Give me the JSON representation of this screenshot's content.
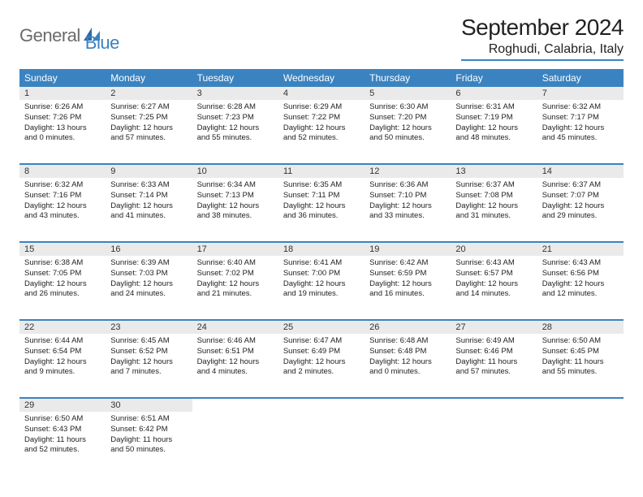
{
  "logo": {
    "general": "General",
    "blue": "Blue"
  },
  "title": "September 2024",
  "location": "Roghudi, Calabria, Italy",
  "colors": {
    "accent": "#3b83c0",
    "header_bg": "#3b83c0",
    "header_text": "#ffffff",
    "daynum_bg": "#eaeaea",
    "border": "#3b83c0",
    "text": "#222222",
    "logo_gray": "#6b6b6b"
  },
  "day_names": [
    "Sunday",
    "Monday",
    "Tuesday",
    "Wednesday",
    "Thursday",
    "Friday",
    "Saturday"
  ],
  "weeks": [
    [
      {
        "n": "1",
        "sr": "Sunrise: 6:26 AM",
        "ss": "Sunset: 7:26 PM",
        "d1": "Daylight: 13 hours",
        "d2": "and 0 minutes."
      },
      {
        "n": "2",
        "sr": "Sunrise: 6:27 AM",
        "ss": "Sunset: 7:25 PM",
        "d1": "Daylight: 12 hours",
        "d2": "and 57 minutes."
      },
      {
        "n": "3",
        "sr": "Sunrise: 6:28 AM",
        "ss": "Sunset: 7:23 PM",
        "d1": "Daylight: 12 hours",
        "d2": "and 55 minutes."
      },
      {
        "n": "4",
        "sr": "Sunrise: 6:29 AM",
        "ss": "Sunset: 7:22 PM",
        "d1": "Daylight: 12 hours",
        "d2": "and 52 minutes."
      },
      {
        "n": "5",
        "sr": "Sunrise: 6:30 AM",
        "ss": "Sunset: 7:20 PM",
        "d1": "Daylight: 12 hours",
        "d2": "and 50 minutes."
      },
      {
        "n": "6",
        "sr": "Sunrise: 6:31 AM",
        "ss": "Sunset: 7:19 PM",
        "d1": "Daylight: 12 hours",
        "d2": "and 48 minutes."
      },
      {
        "n": "7",
        "sr": "Sunrise: 6:32 AM",
        "ss": "Sunset: 7:17 PM",
        "d1": "Daylight: 12 hours",
        "d2": "and 45 minutes."
      }
    ],
    [
      {
        "n": "8",
        "sr": "Sunrise: 6:32 AM",
        "ss": "Sunset: 7:16 PM",
        "d1": "Daylight: 12 hours",
        "d2": "and 43 minutes."
      },
      {
        "n": "9",
        "sr": "Sunrise: 6:33 AM",
        "ss": "Sunset: 7:14 PM",
        "d1": "Daylight: 12 hours",
        "d2": "and 41 minutes."
      },
      {
        "n": "10",
        "sr": "Sunrise: 6:34 AM",
        "ss": "Sunset: 7:13 PM",
        "d1": "Daylight: 12 hours",
        "d2": "and 38 minutes."
      },
      {
        "n": "11",
        "sr": "Sunrise: 6:35 AM",
        "ss": "Sunset: 7:11 PM",
        "d1": "Daylight: 12 hours",
        "d2": "and 36 minutes."
      },
      {
        "n": "12",
        "sr": "Sunrise: 6:36 AM",
        "ss": "Sunset: 7:10 PM",
        "d1": "Daylight: 12 hours",
        "d2": "and 33 minutes."
      },
      {
        "n": "13",
        "sr": "Sunrise: 6:37 AM",
        "ss": "Sunset: 7:08 PM",
        "d1": "Daylight: 12 hours",
        "d2": "and 31 minutes."
      },
      {
        "n": "14",
        "sr": "Sunrise: 6:37 AM",
        "ss": "Sunset: 7:07 PM",
        "d1": "Daylight: 12 hours",
        "d2": "and 29 minutes."
      }
    ],
    [
      {
        "n": "15",
        "sr": "Sunrise: 6:38 AM",
        "ss": "Sunset: 7:05 PM",
        "d1": "Daylight: 12 hours",
        "d2": "and 26 minutes."
      },
      {
        "n": "16",
        "sr": "Sunrise: 6:39 AM",
        "ss": "Sunset: 7:03 PM",
        "d1": "Daylight: 12 hours",
        "d2": "and 24 minutes."
      },
      {
        "n": "17",
        "sr": "Sunrise: 6:40 AM",
        "ss": "Sunset: 7:02 PM",
        "d1": "Daylight: 12 hours",
        "d2": "and 21 minutes."
      },
      {
        "n": "18",
        "sr": "Sunrise: 6:41 AM",
        "ss": "Sunset: 7:00 PM",
        "d1": "Daylight: 12 hours",
        "d2": "and 19 minutes."
      },
      {
        "n": "19",
        "sr": "Sunrise: 6:42 AM",
        "ss": "Sunset: 6:59 PM",
        "d1": "Daylight: 12 hours",
        "d2": "and 16 minutes."
      },
      {
        "n": "20",
        "sr": "Sunrise: 6:43 AM",
        "ss": "Sunset: 6:57 PM",
        "d1": "Daylight: 12 hours",
        "d2": "and 14 minutes."
      },
      {
        "n": "21",
        "sr": "Sunrise: 6:43 AM",
        "ss": "Sunset: 6:56 PM",
        "d1": "Daylight: 12 hours",
        "d2": "and 12 minutes."
      }
    ],
    [
      {
        "n": "22",
        "sr": "Sunrise: 6:44 AM",
        "ss": "Sunset: 6:54 PM",
        "d1": "Daylight: 12 hours",
        "d2": "and 9 minutes."
      },
      {
        "n": "23",
        "sr": "Sunrise: 6:45 AM",
        "ss": "Sunset: 6:52 PM",
        "d1": "Daylight: 12 hours",
        "d2": "and 7 minutes."
      },
      {
        "n": "24",
        "sr": "Sunrise: 6:46 AM",
        "ss": "Sunset: 6:51 PM",
        "d1": "Daylight: 12 hours",
        "d2": "and 4 minutes."
      },
      {
        "n": "25",
        "sr": "Sunrise: 6:47 AM",
        "ss": "Sunset: 6:49 PM",
        "d1": "Daylight: 12 hours",
        "d2": "and 2 minutes."
      },
      {
        "n": "26",
        "sr": "Sunrise: 6:48 AM",
        "ss": "Sunset: 6:48 PM",
        "d1": "Daylight: 12 hours",
        "d2": "and 0 minutes."
      },
      {
        "n": "27",
        "sr": "Sunrise: 6:49 AM",
        "ss": "Sunset: 6:46 PM",
        "d1": "Daylight: 11 hours",
        "d2": "and 57 minutes."
      },
      {
        "n": "28",
        "sr": "Sunrise: 6:50 AM",
        "ss": "Sunset: 6:45 PM",
        "d1": "Daylight: 11 hours",
        "d2": "and 55 minutes."
      }
    ],
    [
      {
        "n": "29",
        "sr": "Sunrise: 6:50 AM",
        "ss": "Sunset: 6:43 PM",
        "d1": "Daylight: 11 hours",
        "d2": "and 52 minutes."
      },
      {
        "n": "30",
        "sr": "Sunrise: 6:51 AM",
        "ss": "Sunset: 6:42 PM",
        "d1": "Daylight: 11 hours",
        "d2": "and 50 minutes."
      },
      null,
      null,
      null,
      null,
      null
    ]
  ]
}
